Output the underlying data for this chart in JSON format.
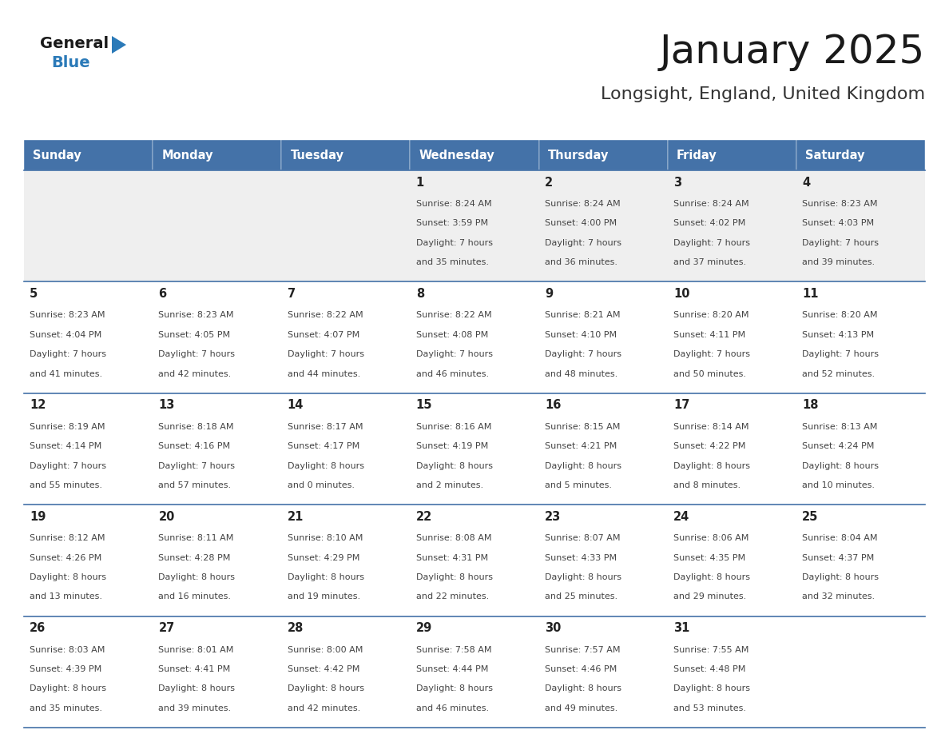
{
  "title": "January 2025",
  "subtitle": "Longsight, England, United Kingdom",
  "days_of_week": [
    "Sunday",
    "Monday",
    "Tuesday",
    "Wednesday",
    "Thursday",
    "Friday",
    "Saturday"
  ],
  "header_bg": "#4472a8",
  "header_text": "#ffffff",
  "cell_bg_row0": "#efefef",
  "cell_bg_default": "#ffffff",
  "row_border_color": "#4472a8",
  "day_number_color": "#222222",
  "text_color": "#444444",
  "title_color": "#1a1a1a",
  "subtitle_color": "#333333",
  "logo_general_color": "#1a1a1a",
  "logo_blue_color": "#2b7ab8",
  "calendar_data": [
    [
      null,
      null,
      null,
      {
        "day": "1",
        "sunrise": "8:24 AM",
        "sunset": "3:59 PM",
        "daylight_line1": "Daylight: 7 hours",
        "daylight_line2": "and 35 minutes."
      },
      {
        "day": "2",
        "sunrise": "8:24 AM",
        "sunset": "4:00 PM",
        "daylight_line1": "Daylight: 7 hours",
        "daylight_line2": "and 36 minutes."
      },
      {
        "day": "3",
        "sunrise": "8:24 AM",
        "sunset": "4:02 PM",
        "daylight_line1": "Daylight: 7 hours",
        "daylight_line2": "and 37 minutes."
      },
      {
        "day": "4",
        "sunrise": "8:23 AM",
        "sunset": "4:03 PM",
        "daylight_line1": "Daylight: 7 hours",
        "daylight_line2": "and 39 minutes."
      }
    ],
    [
      {
        "day": "5",
        "sunrise": "8:23 AM",
        "sunset": "4:04 PM",
        "daylight_line1": "Daylight: 7 hours",
        "daylight_line2": "and 41 minutes."
      },
      {
        "day": "6",
        "sunrise": "8:23 AM",
        "sunset": "4:05 PM",
        "daylight_line1": "Daylight: 7 hours",
        "daylight_line2": "and 42 minutes."
      },
      {
        "day": "7",
        "sunrise": "8:22 AM",
        "sunset": "4:07 PM",
        "daylight_line1": "Daylight: 7 hours",
        "daylight_line2": "and 44 minutes."
      },
      {
        "day": "8",
        "sunrise": "8:22 AM",
        "sunset": "4:08 PM",
        "daylight_line1": "Daylight: 7 hours",
        "daylight_line2": "and 46 minutes."
      },
      {
        "day": "9",
        "sunrise": "8:21 AM",
        "sunset": "4:10 PM",
        "daylight_line1": "Daylight: 7 hours",
        "daylight_line2": "and 48 minutes."
      },
      {
        "day": "10",
        "sunrise": "8:20 AM",
        "sunset": "4:11 PM",
        "daylight_line1": "Daylight: 7 hours",
        "daylight_line2": "and 50 minutes."
      },
      {
        "day": "11",
        "sunrise": "8:20 AM",
        "sunset": "4:13 PM",
        "daylight_line1": "Daylight: 7 hours",
        "daylight_line2": "and 52 minutes."
      }
    ],
    [
      {
        "day": "12",
        "sunrise": "8:19 AM",
        "sunset": "4:14 PM",
        "daylight_line1": "Daylight: 7 hours",
        "daylight_line2": "and 55 minutes."
      },
      {
        "day": "13",
        "sunrise": "8:18 AM",
        "sunset": "4:16 PM",
        "daylight_line1": "Daylight: 7 hours",
        "daylight_line2": "and 57 minutes."
      },
      {
        "day": "14",
        "sunrise": "8:17 AM",
        "sunset": "4:17 PM",
        "daylight_line1": "Daylight: 8 hours",
        "daylight_line2": "and 0 minutes."
      },
      {
        "day": "15",
        "sunrise": "8:16 AM",
        "sunset": "4:19 PM",
        "daylight_line1": "Daylight: 8 hours",
        "daylight_line2": "and 2 minutes."
      },
      {
        "day": "16",
        "sunrise": "8:15 AM",
        "sunset": "4:21 PM",
        "daylight_line1": "Daylight: 8 hours",
        "daylight_line2": "and 5 minutes."
      },
      {
        "day": "17",
        "sunrise": "8:14 AM",
        "sunset": "4:22 PM",
        "daylight_line1": "Daylight: 8 hours",
        "daylight_line2": "and 8 minutes."
      },
      {
        "day": "18",
        "sunrise": "8:13 AM",
        "sunset": "4:24 PM",
        "daylight_line1": "Daylight: 8 hours",
        "daylight_line2": "and 10 minutes."
      }
    ],
    [
      {
        "day": "19",
        "sunrise": "8:12 AM",
        "sunset": "4:26 PM",
        "daylight_line1": "Daylight: 8 hours",
        "daylight_line2": "and 13 minutes."
      },
      {
        "day": "20",
        "sunrise": "8:11 AM",
        "sunset": "4:28 PM",
        "daylight_line1": "Daylight: 8 hours",
        "daylight_line2": "and 16 minutes."
      },
      {
        "day": "21",
        "sunrise": "8:10 AM",
        "sunset": "4:29 PM",
        "daylight_line1": "Daylight: 8 hours",
        "daylight_line2": "and 19 minutes."
      },
      {
        "day": "22",
        "sunrise": "8:08 AM",
        "sunset": "4:31 PM",
        "daylight_line1": "Daylight: 8 hours",
        "daylight_line2": "and 22 minutes."
      },
      {
        "day": "23",
        "sunrise": "8:07 AM",
        "sunset": "4:33 PM",
        "daylight_line1": "Daylight: 8 hours",
        "daylight_line2": "and 25 minutes."
      },
      {
        "day": "24",
        "sunrise": "8:06 AM",
        "sunset": "4:35 PM",
        "daylight_line1": "Daylight: 8 hours",
        "daylight_line2": "and 29 minutes."
      },
      {
        "day": "25",
        "sunrise": "8:04 AM",
        "sunset": "4:37 PM",
        "daylight_line1": "Daylight: 8 hours",
        "daylight_line2": "and 32 minutes."
      }
    ],
    [
      {
        "day": "26",
        "sunrise": "8:03 AM",
        "sunset": "4:39 PM",
        "daylight_line1": "Daylight: 8 hours",
        "daylight_line2": "and 35 minutes."
      },
      {
        "day": "27",
        "sunrise": "8:01 AM",
        "sunset": "4:41 PM",
        "daylight_line1": "Daylight: 8 hours",
        "daylight_line2": "and 39 minutes."
      },
      {
        "day": "28",
        "sunrise": "8:00 AM",
        "sunset": "4:42 PM",
        "daylight_line1": "Daylight: 8 hours",
        "daylight_line2": "and 42 minutes."
      },
      {
        "day": "29",
        "sunrise": "7:58 AM",
        "sunset": "4:44 PM",
        "daylight_line1": "Daylight: 8 hours",
        "daylight_line2": "and 46 minutes."
      },
      {
        "day": "30",
        "sunrise": "7:57 AM",
        "sunset": "4:46 PM",
        "daylight_line1": "Daylight: 8 hours",
        "daylight_line2": "and 49 minutes."
      },
      {
        "day": "31",
        "sunrise": "7:55 AM",
        "sunset": "4:48 PM",
        "daylight_line1": "Daylight: 8 hours",
        "daylight_line2": "and 53 minutes."
      },
      null
    ]
  ]
}
